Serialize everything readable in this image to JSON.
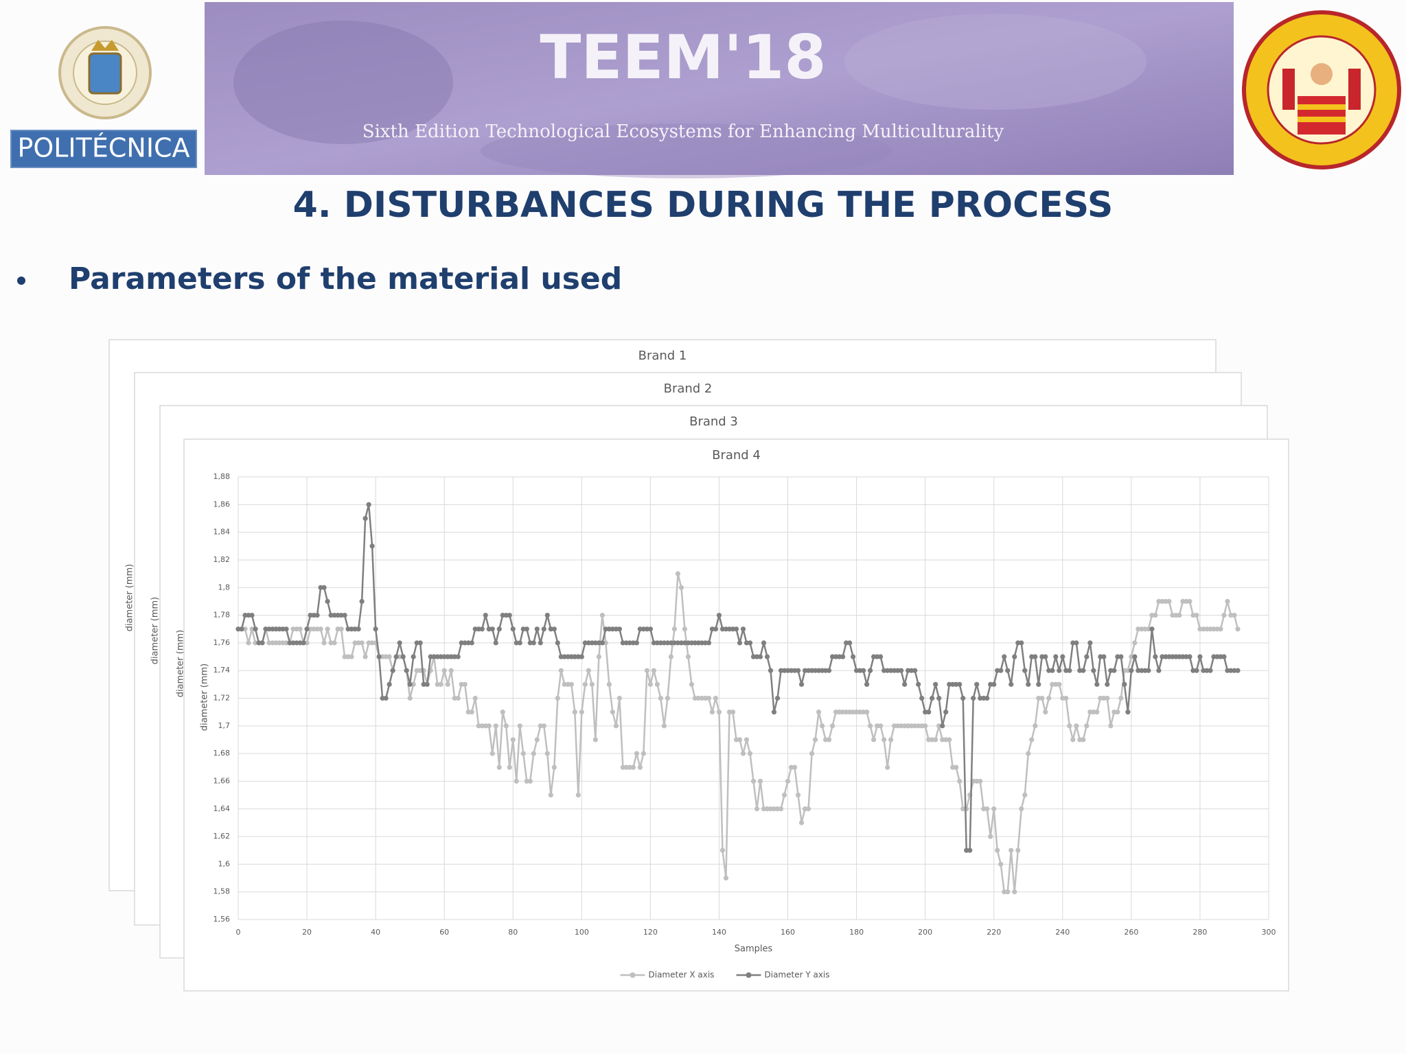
{
  "header": {
    "logo_left_text": "POLITÉCNICA",
    "banner_title": "TEEM'18",
    "banner_subtitle": "Sixth Edition Technological Ecosystems for Enhancing Multiculturality"
  },
  "slide_title": "4. DISTURBANCES DURING THE PROCESS",
  "bullet": "Parameters of the material used",
  "chart_data": [
    {
      "type": "line",
      "title": "Brand 1",
      "y_label": "diameter (mm)"
    },
    {
      "type": "line",
      "title": "Brand 2",
      "y_label": "diameter (mm)"
    },
    {
      "type": "line",
      "title": "Brand 3",
      "y_label": "diameter (mm)"
    },
    {
      "type": "line",
      "title": "Brand 4",
      "x_label": "Samples",
      "y_label": "diameter (mm)",
      "grid": true,
      "legend": "bottom",
      "xlim": [
        0,
        300
      ],
      "xticks": [
        0,
        20,
        40,
        60,
        80,
        100,
        120,
        140,
        160,
        180,
        200,
        220,
        240,
        260,
        280,
        300
      ],
      "ylim": [
        1.56,
        1.88
      ],
      "yticks": [
        {
          "value": 1.56,
          "label": "1,56"
        },
        {
          "value": 1.58,
          "label": "1,58"
        },
        {
          "value": 1.6,
          "label": "1,6"
        },
        {
          "value": 1.62,
          "label": "1,62"
        },
        {
          "value": 1.64,
          "label": "1,64"
        },
        {
          "value": 1.66,
          "label": "1,66"
        },
        {
          "value": 1.68,
          "label": "1,68"
        },
        {
          "value": 1.7,
          "label": "1,7"
        },
        {
          "value": 1.72,
          "label": "1,72"
        },
        {
          "value": 1.74,
          "label": "1,74"
        },
        {
          "value": 1.76,
          "label": "1,76"
        },
        {
          "value": 1.78,
          "label": "1,78"
        },
        {
          "value": 1.8,
          "label": "1,8"
        },
        {
          "value": 1.82,
          "label": "1,82"
        },
        {
          "value": 1.84,
          "label": "1,84"
        },
        {
          "value": 1.86,
          "label": "1,86"
        },
        {
          "value": 1.88,
          "label": "1,88"
        }
      ],
      "x": [
        0,
        1,
        2,
        3,
        4,
        5,
        6,
        7,
        8,
        9,
        10,
        11,
        12,
        13,
        14,
        15,
        16,
        17,
        18,
        19,
        20,
        21,
        22,
        23,
        24,
        25,
        26,
        27,
        28,
        29,
        30,
        31,
        32,
        33,
        34,
        35,
        36,
        37,
        38,
        39,
        40,
        41,
        42,
        43,
        44,
        45,
        46,
        47,
        48,
        49,
        50,
        51,
        52,
        53,
        54,
        55,
        56,
        57,
        58,
        59,
        60,
        61,
        62,
        63,
        64,
        65,
        66,
        67,
        68,
        69,
        70,
        71,
        72,
        73,
        74,
        75,
        76,
        77,
        78,
        79,
        80,
        81,
        82,
        83,
        84,
        85,
        86,
        87,
        88,
        89,
        90,
        91,
        92,
        93,
        94,
        95,
        96,
        97,
        98,
        99,
        100,
        101,
        102,
        103,
        104,
        105,
        106,
        107,
        108,
        109,
        110,
        111,
        112,
        113,
        114,
        115,
        116,
        117,
        118,
        119,
        120,
        121,
        122,
        123,
        124,
        125,
        126,
        127,
        128,
        129,
        130,
        131,
        132,
        133,
        134,
        135,
        136,
        137,
        138,
        139,
        140,
        141,
        142,
        143,
        144,
        145,
        146,
        147,
        148,
        149,
        150,
        151,
        152,
        153,
        154,
        155,
        156,
        157,
        158,
        159,
        160,
        161,
        162,
        163,
        164,
        165,
        166,
        167,
        168,
        169,
        170,
        171,
        172,
        173,
        174,
        175,
        176,
        177,
        178,
        179,
        180,
        181,
        182,
        183,
        184,
        185,
        186,
        187,
        188,
        189,
        190,
        191,
        192,
        193,
        194,
        195,
        196,
        197,
        198,
        199,
        200,
        201,
        202,
        203,
        204,
        205,
        206,
        207,
        208,
        209,
        210,
        211,
        212,
        213,
        214,
        215,
        216,
        217,
        218,
        219,
        220,
        221,
        222,
        223,
        224,
        225,
        226,
        227,
        228,
        229,
        230,
        231,
        232,
        233,
        234,
        235,
        236,
        237,
        238,
        239,
        240,
        241,
        242,
        243,
        244,
        245,
        246,
        247,
        248,
        249,
        250,
        251,
        252,
        253,
        254,
        255,
        256,
        257,
        258,
        259,
        260,
        261,
        262,
        263,
        264,
        265,
        266,
        267,
        268,
        269,
        270,
        271,
        272,
        273,
        274,
        275,
        276,
        277,
        278,
        279,
        280,
        281,
        282,
        283,
        284,
        285,
        286,
        287,
        288,
        289,
        290,
        291
      ],
      "series": [
        {
          "name": "Diameter X axis",
          "color": "#bfbfbf",
          "values": [
            1.77,
            1.77,
            1.77,
            1.76,
            1.77,
            1.76,
            1.76,
            1.76,
            1.77,
            1.76,
            1.76,
            1.76,
            1.76,
            1.76,
            1.76,
            1.76,
            1.77,
            1.77,
            1.77,
            1.76,
            1.76,
            1.77,
            1.77,
            1.77,
            1.77,
            1.76,
            1.77,
            1.76,
            1.76,
            1.77,
            1.77,
            1.75,
            1.75,
            1.75,
            1.76,
            1.76,
            1.76,
            1.75,
            1.76,
            1.76,
            1.76,
            1.75,
            1.75,
            1.75,
            1.75,
            1.74,
            1.75,
            1.75,
            1.75,
            1.74,
            1.72,
            1.73,
            1.74,
            1.74,
            1.74,
            1.73,
            1.74,
            1.75,
            1.73,
            1.73,
            1.74,
            1.73,
            1.74,
            1.72,
            1.72,
            1.73,
            1.73,
            1.71,
            1.71,
            1.72,
            1.7,
            1.7,
            1.7,
            1.7,
            1.68,
            1.7,
            1.67,
            1.71,
            1.7,
            1.67,
            1.69,
            1.66,
            1.7,
            1.68,
            1.66,
            1.66,
            1.68,
            1.69,
            1.7,
            1.7,
            1.68,
            1.65,
            1.67,
            1.72,
            1.74,
            1.73,
            1.73,
            1.73,
            1.71,
            1.65,
            1.71,
            1.73,
            1.74,
            1.73,
            1.69,
            1.75,
            1.78,
            1.76,
            1.73,
            1.71,
            1.7,
            1.72,
            1.67,
            1.67,
            1.67,
            1.67,
            1.68,
            1.67,
            1.68,
            1.74,
            1.73,
            1.74,
            1.73,
            1.72,
            1.7,
            1.72,
            1.75,
            1.77,
            1.81,
            1.8,
            1.77,
            1.75,
            1.73,
            1.72,
            1.72,
            1.72,
            1.72,
            1.72,
            1.71,
            1.72,
            1.71,
            1.61,
            1.59,
            1.71,
            1.71,
            1.69,
            1.69,
            1.68,
            1.69,
            1.68,
            1.66,
            1.64,
            1.66,
            1.64,
            1.64,
            1.64,
            1.64,
            1.64,
            1.64,
            1.65,
            1.66,
            1.67,
            1.67,
            1.65,
            1.63,
            1.64,
            1.64,
            1.68,
            1.69,
            1.71,
            1.7,
            1.69,
            1.69,
            1.7,
            1.71,
            1.71,
            1.71,
            1.71,
            1.71,
            1.71,
            1.71,
            1.71,
            1.71,
            1.71,
            1.7,
            1.69,
            1.7,
            1.7,
            1.69,
            1.67,
            1.69,
            1.7,
            1.7,
            1.7,
            1.7,
            1.7,
            1.7,
            1.7,
            1.7,
            1.7,
            1.7,
            1.69,
            1.69,
            1.69,
            1.7,
            1.69,
            1.69,
            1.69,
            1.67,
            1.67,
            1.66,
            1.64,
            1.64,
            1.65,
            1.66,
            1.66,
            1.66,
            1.64,
            1.64,
            1.62,
            1.64,
            1.61,
            1.6,
            1.58,
            1.58,
            1.61,
            1.58,
            1.61,
            1.64,
            1.65,
            1.68,
            1.69,
            1.7,
            1.72,
            1.72,
            1.71,
            1.72,
            1.73,
            1.73,
            1.73,
            1.72,
            1.72,
            1.7,
            1.69,
            1.7,
            1.69,
            1.69,
            1.7,
            1.71,
            1.71,
            1.71,
            1.72,
            1.72,
            1.72,
            1.7,
            1.71,
            1.71,
            1.72,
            1.74,
            1.74,
            1.75,
            1.76,
            1.77,
            1.77,
            1.77,
            1.77,
            1.78,
            1.78,
            1.79,
            1.79,
            1.79,
            1.79,
            1.78,
            1.78,
            1.78,
            1.79,
            1.79,
            1.79,
            1.78,
            1.78,
            1.77,
            1.77,
            1.77,
            1.77,
            1.77,
            1.77,
            1.77,
            1.78,
            1.79,
            1.78,
            1.78,
            1.77
          ]
        },
        {
          "name": "Diameter Y axis",
          "color": "#7f7f7f",
          "values": [
            1.77,
            1.77,
            1.78,
            1.78,
            1.78,
            1.77,
            1.76,
            1.76,
            1.77,
            1.77,
            1.77,
            1.77,
            1.77,
            1.77,
            1.77,
            1.76,
            1.76,
            1.76,
            1.76,
            1.76,
            1.77,
            1.78,
            1.78,
            1.78,
            1.8,
            1.8,
            1.79,
            1.78,
            1.78,
            1.78,
            1.78,
            1.78,
            1.77,
            1.77,
            1.77,
            1.77,
            1.79,
            1.85,
            1.86,
            1.83,
            1.77,
            1.75,
            1.72,
            1.72,
            1.73,
            1.74,
            1.75,
            1.76,
            1.75,
            1.74,
            1.73,
            1.75,
            1.76,
            1.76,
            1.73,
            1.73,
            1.75,
            1.75,
            1.75,
            1.75,
            1.75,
            1.75,
            1.75,
            1.75,
            1.75,
            1.76,
            1.76,
            1.76,
            1.76,
            1.77,
            1.77,
            1.77,
            1.78,
            1.77,
            1.77,
            1.76,
            1.77,
            1.78,
            1.78,
            1.78,
            1.77,
            1.76,
            1.76,
            1.77,
            1.77,
            1.76,
            1.76,
            1.77,
            1.76,
            1.77,
            1.78,
            1.77,
            1.77,
            1.76,
            1.75,
            1.75,
            1.75,
            1.75,
            1.75,
            1.75,
            1.75,
            1.76,
            1.76,
            1.76,
            1.76,
            1.76,
            1.76,
            1.77,
            1.77,
            1.77,
            1.77,
            1.77,
            1.76,
            1.76,
            1.76,
            1.76,
            1.76,
            1.77,
            1.77,
            1.77,
            1.77,
            1.76,
            1.76,
            1.76,
            1.76,
            1.76,
            1.76,
            1.76,
            1.76,
            1.76,
            1.76,
            1.76,
            1.76,
            1.76,
            1.76,
            1.76,
            1.76,
            1.76,
            1.77,
            1.77,
            1.78,
            1.77,
            1.77,
            1.77,
            1.77,
            1.77,
            1.76,
            1.77,
            1.76,
            1.76,
            1.75,
            1.75,
            1.75,
            1.76,
            1.75,
            1.74,
            1.71,
            1.72,
            1.74,
            1.74,
            1.74,
            1.74,
            1.74,
            1.74,
            1.73,
            1.74,
            1.74,
            1.74,
            1.74,
            1.74,
            1.74,
            1.74,
            1.74,
            1.75,
            1.75,
            1.75,
            1.75,
            1.76,
            1.76,
            1.75,
            1.74,
            1.74,
            1.74,
            1.73,
            1.74,
            1.75,
            1.75,
            1.75,
            1.74,
            1.74,
            1.74,
            1.74,
            1.74,
            1.74,
            1.73,
            1.74,
            1.74,
            1.74,
            1.73,
            1.72,
            1.71,
            1.71,
            1.72,
            1.73,
            1.72,
            1.7,
            1.71,
            1.73,
            1.73,
            1.73,
            1.73,
            1.72,
            1.61,
            1.61,
            1.72,
            1.73,
            1.72,
            1.72,
            1.72,
            1.73,
            1.73,
            1.74,
            1.74,
            1.75,
            1.74,
            1.73,
            1.75,
            1.76,
            1.76,
            1.74,
            1.73,
            1.75,
            1.75,
            1.73,
            1.75,
            1.75,
            1.74,
            1.74,
            1.75,
            1.74,
            1.75,
            1.74,
            1.74,
            1.76,
            1.76,
            1.74,
            1.74,
            1.75,
            1.76,
            1.74,
            1.73,
            1.75,
            1.75,
            1.73,
            1.74,
            1.74,
            1.75,
            1.75,
            1.73,
            1.71,
            1.74,
            1.75,
            1.74,
            1.74,
            1.74,
            1.74,
            1.77,
            1.75,
            1.74,
            1.75,
            1.75,
            1.75,
            1.75,
            1.75,
            1.75,
            1.75,
            1.75,
            1.75,
            1.74,
            1.74,
            1.75,
            1.74,
            1.74,
            1.74,
            1.75,
            1.75,
            1.75,
            1.75,
            1.74,
            1.74,
            1.74,
            1.74
          ]
        }
      ]
    }
  ]
}
